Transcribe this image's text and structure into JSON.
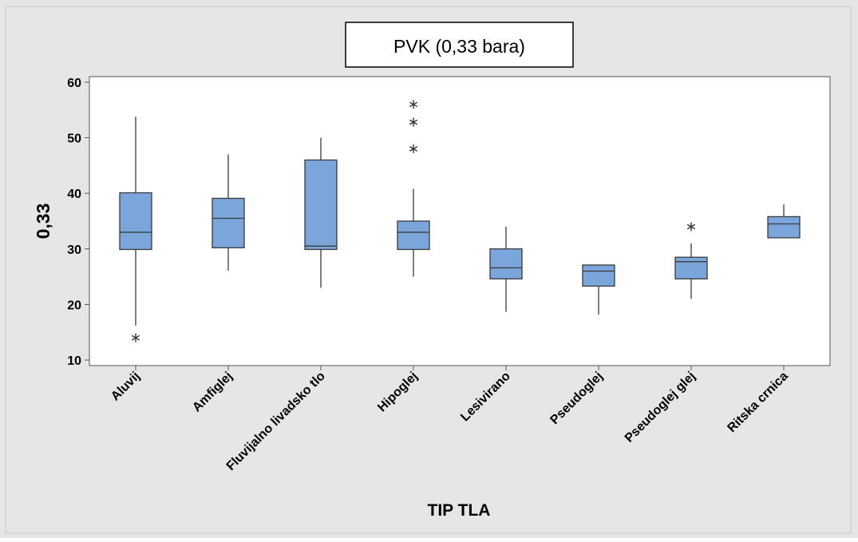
{
  "colors": {
    "background": "#e6e6e6",
    "plot_area": "#ffffff",
    "box_fill": "#7ba6db",
    "box_stroke": "#3a3a3a",
    "axis": "#555555",
    "text": "#000000"
  },
  "chart_data": {
    "type": "boxplot",
    "title": "PVK (0,33 bara)",
    "xlabel": "TIP TLA",
    "ylabel": "0,33",
    "ylim": [
      9,
      61
    ],
    "yticks": [
      10,
      20,
      30,
      40,
      50,
      60
    ],
    "grid": false,
    "categories": [
      "Aluvij",
      "Amfiglej",
      "Fluvijalno livadsko tlo",
      "Hipoglej",
      "Lesivirano",
      "Pseudoglej",
      "Pseudoglej glej",
      "Ritska crnica"
    ],
    "boxes": [
      {
        "category": "Aluvij",
        "whisker_low": 16.2,
        "q1": 29.9,
        "median": 33.0,
        "q3": 40.1,
        "whisker_high": 53.8,
        "outliers": [
          14.0
        ]
      },
      {
        "category": "Amfiglej",
        "whisker_low": 26.1,
        "q1": 30.2,
        "median": 35.5,
        "q3": 39.1,
        "whisker_high": 47.0,
        "outliers": []
      },
      {
        "category": "Fluvijalno livadsko tlo",
        "whisker_low": 23.0,
        "q1": 29.9,
        "median": 30.5,
        "q3": 46.0,
        "whisker_high": 50.0,
        "outliers": []
      },
      {
        "category": "Hipoglej",
        "whisker_low": 25.0,
        "q1": 29.9,
        "median": 33.0,
        "q3": 35.0,
        "whisker_high": 40.8,
        "outliers": [
          48.0,
          52.8,
          56.0
        ]
      },
      {
        "category": "Lesivirano",
        "whisker_low": 18.7,
        "q1": 24.6,
        "median": 26.6,
        "q3": 30.0,
        "whisker_high": 34.0,
        "outliers": []
      },
      {
        "category": "Pseudoglej",
        "whisker_low": 18.2,
        "q1": 23.3,
        "median": 26.0,
        "q3": 27.1,
        "whisker_high": 27.1,
        "outliers": []
      },
      {
        "category": "Pseudoglej glej",
        "whisker_low": 21.0,
        "q1": 24.6,
        "median": 27.7,
        "q3": 28.5,
        "whisker_high": 31.0,
        "outliers": [
          34.0
        ]
      },
      {
        "category": "Ritska crnica",
        "whisker_low": 32.0,
        "q1": 32.0,
        "median": 34.5,
        "q3": 35.8,
        "whisker_high": 38.0,
        "outliers": []
      }
    ]
  }
}
